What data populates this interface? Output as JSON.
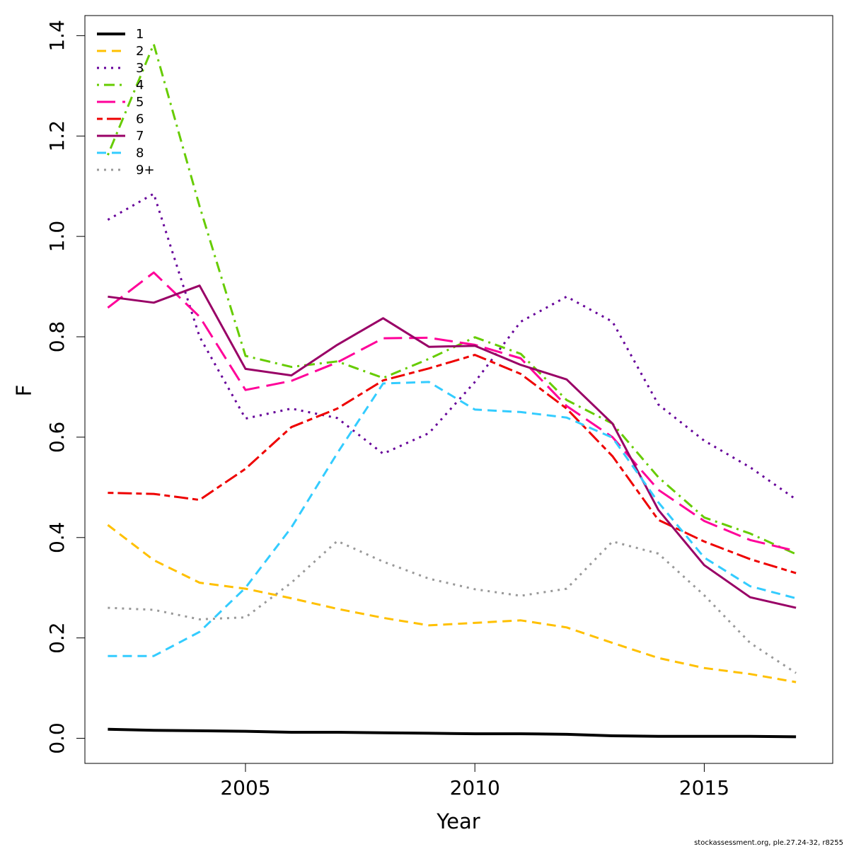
{
  "chart_data": {
    "type": "line",
    "title": "",
    "xlabel": "Year",
    "ylabel": "F",
    "xlim": [
      2001.5,
      2017.8
    ],
    "ylim": [
      -0.05,
      1.44
    ],
    "xticks": [
      2005,
      2010,
      2015
    ],
    "yticks": [
      0.0,
      0.2,
      0.4,
      0.6,
      0.8,
      1.0,
      1.2,
      1.4
    ],
    "ytick_labels": [
      "0.0",
      "0.2",
      "0.4",
      "0.6",
      "0.8",
      "1.0",
      "1.2",
      "1.4"
    ],
    "grid": false,
    "legend_position": "top-left",
    "x": [
      2002,
      2003,
      2004,
      2005,
      2006,
      2007,
      2008,
      2009,
      2010,
      2011,
      2012,
      2013,
      2014,
      2015,
      2016,
      2017
    ],
    "series": [
      {
        "name": "1",
        "color": "#000000",
        "dash": "solid",
        "width": 4,
        "values": [
          0.018,
          0.016,
          0.015,
          0.014,
          0.012,
          0.012,
          0.011,
          0.01,
          0.009,
          0.009,
          0.008,
          0.005,
          0.004,
          0.004,
          0.004,
          0.003
        ]
      },
      {
        "name": "2",
        "color": "#FFC000",
        "dash": "dashed",
        "width": 3,
        "values": [
          0.425,
          0.355,
          0.31,
          0.298,
          0.279,
          0.258,
          0.24,
          0.225,
          0.23,
          0.235,
          0.221,
          0.19,
          0.16,
          0.14,
          0.128,
          0.112
        ]
      },
      {
        "name": "3",
        "color": "#660099",
        "dash": "dotted",
        "width": 3,
        "values": [
          1.033,
          1.085,
          0.8,
          0.637,
          0.657,
          0.638,
          0.567,
          0.608,
          0.71,
          0.83,
          0.88,
          0.83,
          0.665,
          0.593,
          0.54,
          0.476
        ]
      },
      {
        "name": "4",
        "color": "#66CC00",
        "dash": "dotdash",
        "width": 3,
        "values": [
          1.162,
          1.383,
          1.06,
          0.762,
          0.74,
          0.751,
          0.718,
          0.756,
          0.799,
          0.766,
          0.674,
          0.627,
          0.52,
          0.44,
          0.408,
          0.367
        ]
      },
      {
        "name": "5",
        "color": "#FF0099",
        "dash": "longdash",
        "width": 3,
        "values": [
          0.858,
          0.928,
          0.84,
          0.694,
          0.712,
          0.749,
          0.797,
          0.798,
          0.784,
          0.757,
          0.662,
          0.6,
          0.495,
          0.433,
          0.395,
          0.373
        ]
      },
      {
        "name": "6",
        "color": "#EE0000",
        "dash": "twodash",
        "width": 3,
        "values": [
          0.489,
          0.487,
          0.475,
          0.537,
          0.62,
          0.657,
          0.713,
          0.737,
          0.764,
          0.726,
          0.657,
          0.562,
          0.435,
          0.392,
          0.357,
          0.329
        ]
      },
      {
        "name": "7",
        "color": "#990066",
        "dash": "solid",
        "width": 3,
        "values": [
          0.88,
          0.868,
          0.902,
          0.736,
          0.723,
          0.784,
          0.837,
          0.78,
          0.782,
          0.744,
          0.715,
          0.627,
          0.455,
          0.345,
          0.281,
          0.26
        ]
      },
      {
        "name": "8",
        "color": "#33CCFF",
        "dash": "dashed",
        "width": 3,
        "values": [
          0.164,
          0.164,
          0.212,
          0.3,
          0.42,
          0.568,
          0.707,
          0.71,
          0.655,
          0.65,
          0.639,
          0.599,
          0.47,
          0.36,
          0.303,
          0.279
        ]
      },
      {
        "name": "9+",
        "color": "#999999",
        "dash": "dotted",
        "width": 3,
        "values": [
          0.26,
          0.256,
          0.237,
          0.241,
          0.31,
          0.393,
          0.352,
          0.318,
          0.297,
          0.284,
          0.298,
          0.392,
          0.368,
          0.285,
          0.19,
          0.13
        ]
      }
    ]
  },
  "credit": "stockassessment.org, ple.27.24-32, r8255"
}
